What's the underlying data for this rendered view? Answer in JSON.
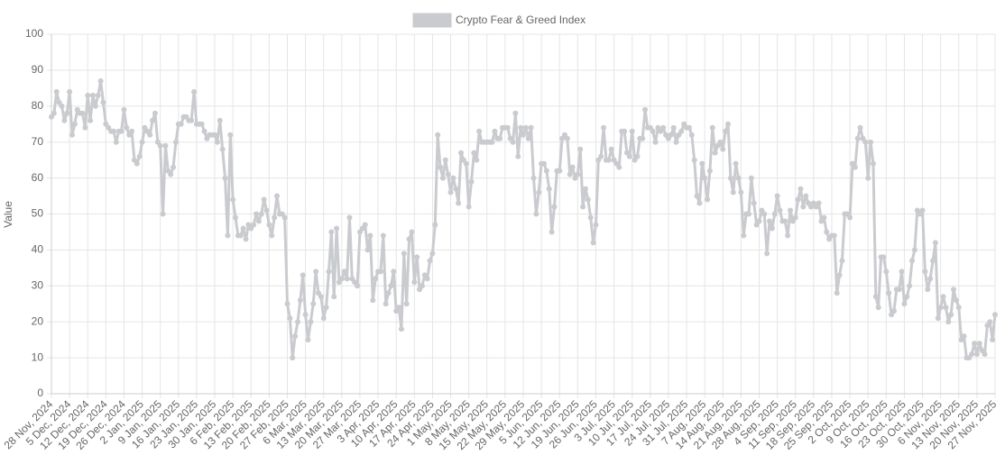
{
  "chart_data": {
    "type": "line",
    "ylabel": "Value",
    "legend": "top",
    "grid": true,
    "ylim": [
      0,
      100
    ],
    "yticks": [
      0,
      10,
      20,
      30,
      40,
      50,
      60,
      70,
      80,
      90,
      100
    ],
    "categories": [
      "28 Nov, 2024",
      null,
      null,
      null,
      null,
      null,
      null,
      "5 Dec, 2024",
      null,
      null,
      null,
      null,
      null,
      null,
      "12 Dec, 2024",
      null,
      null,
      null,
      null,
      null,
      null,
      "19 Dec, 2024",
      null,
      null,
      null,
      null,
      null,
      null,
      "26 Dec, 2024",
      null,
      null,
      null,
      null,
      null,
      null,
      "2 Jan, 2025",
      null,
      null,
      null,
      null,
      null,
      null,
      "9 Jan, 2025",
      null,
      null,
      null,
      null,
      null,
      null,
      "16 Jan, 2025",
      null,
      null,
      null,
      null,
      null,
      null,
      "23 Jan, 2025",
      null,
      null,
      null,
      null,
      null,
      null,
      "30 Jan, 2025",
      null,
      null,
      null,
      null,
      null,
      null,
      "6 Feb, 2025",
      null,
      null,
      null,
      null,
      null,
      null,
      "13 Feb, 2025",
      null,
      null,
      null,
      null,
      null,
      null,
      "20 Feb, 2025",
      null,
      null,
      null,
      null,
      null,
      null,
      "27 Feb, 2025",
      null,
      null,
      null,
      null,
      null,
      null,
      "6 Mar, 2025",
      null,
      null,
      null,
      null,
      null,
      null,
      "13 Mar, 2025",
      null,
      null,
      null,
      null,
      null,
      null,
      "20 Mar, 2025",
      null,
      null,
      null,
      null,
      null,
      null,
      "27 Mar, 2025",
      null,
      null,
      null,
      null,
      null,
      null,
      "3 Apr, 2025",
      null,
      null,
      null,
      null,
      null,
      null,
      "10 Apr, 2025",
      null,
      null,
      null,
      null,
      null,
      null,
      "17 Apr, 2025",
      null,
      null,
      null,
      null,
      null,
      null,
      "24 Apr, 2025",
      null,
      null,
      null,
      null,
      null,
      null,
      "1 May, 2025",
      null,
      null,
      null,
      null,
      null,
      null,
      "8 May, 2025",
      null,
      null,
      null,
      null,
      null,
      null,
      "15 May, 2025",
      null,
      null,
      null,
      null,
      null,
      null,
      "22 May, 2025",
      null,
      null,
      null,
      null,
      null,
      null,
      "29 May, 2025",
      null,
      null,
      null,
      null,
      null,
      null,
      "5 Jun, 2025",
      null,
      null,
      null,
      null,
      null,
      null,
      "12 Jun, 2025",
      null,
      null,
      null,
      null,
      null,
      null,
      "19 Jun, 2025",
      null,
      null,
      null,
      null,
      null,
      null,
      "26 Jun, 2025",
      null,
      null,
      null,
      null,
      null,
      null,
      "3 Jul, 2025",
      null,
      null,
      null,
      null,
      null,
      null,
      "10 Jul, 2025",
      null,
      null,
      null,
      null,
      null,
      null,
      "17 Jul, 2025",
      null,
      null,
      null,
      null,
      null,
      null,
      "24 Jul, 2025",
      null,
      null,
      null,
      null,
      null,
      null,
      "31 Jul, 2025",
      null,
      null,
      null,
      null,
      null,
      null,
      "7 Aug, 2025",
      null,
      null,
      null,
      null,
      null,
      null,
      "14 Aug, 2025",
      null,
      null,
      null,
      null,
      null,
      null,
      "21 Aug, 2025",
      null,
      null,
      null,
      null,
      null,
      null,
      "28 Aug, 2025",
      null,
      null,
      null,
      null,
      null,
      null,
      "4 Sep, 2025",
      null,
      null,
      null,
      null,
      null,
      null,
      "11 Sep, 2025",
      null,
      null,
      null,
      null,
      null,
      null,
      "18 Sep, 2025",
      null,
      null,
      null,
      null,
      null,
      null,
      "25 Sep, 2025",
      null,
      null,
      null,
      null,
      null,
      null,
      "2 Oct, 2025",
      null,
      null,
      null,
      null,
      null,
      null,
      "9 Oct, 2025",
      null,
      null,
      null,
      null,
      null,
      null,
      "16 Oct, 2025",
      null,
      null,
      null,
      null,
      null,
      null,
      "23 Oct, 2025",
      null,
      null,
      null,
      null,
      null,
      null,
      "30 Oct, 2025",
      null,
      null,
      null,
      null,
      null,
      null,
      "6 Nov, 2025",
      null,
      null,
      null,
      null,
      null,
      null,
      "13 Nov, 2025",
      null,
      null,
      null,
      null,
      null,
      null,
      "20 Nov, 2025",
      null,
      null,
      null,
      null,
      null,
      null,
      "27 Nov, 2025"
    ],
    "series": [
      {
        "name": "Crypto Fear & Greed Index",
        "color": "#c9cbcf",
        "values": [
          77,
          78,
          84,
          81,
          80,
          76,
          78,
          84,
          72,
          75,
          79,
          78,
          78,
          74,
          83,
          76,
          83,
          80,
          83,
          87,
          81,
          75,
          74,
          73,
          73,
          70,
          73,
          73,
          79,
          74,
          72,
          73,
          65,
          64,
          66,
          70,
          74,
          73,
          72,
          76,
          78,
          70,
          69,
          50,
          69,
          62,
          61,
          63,
          70,
          75,
          75,
          77,
          77,
          76,
          76,
          84,
          75,
          75,
          75,
          73,
          71,
          72,
          72,
          72,
          70,
          76,
          68,
          60,
          44,
          72,
          54,
          49,
          44,
          44,
          46,
          43,
          47,
          46,
          47,
          50,
          48,
          50,
          54,
          51,
          47,
          44,
          49,
          55,
          50,
          50,
          49,
          25,
          21,
          10,
          16,
          20,
          26,
          33,
          22,
          15,
          20,
          25,
          34,
          28,
          27,
          21,
          24,
          34,
          45,
          27,
          46,
          31,
          32,
          34,
          32,
          49,
          32,
          31,
          30,
          45,
          46,
          47,
          40,
          44,
          26,
          32,
          34,
          34,
          44,
          25,
          28,
          30,
          34,
          23,
          24,
          18,
          39,
          25,
          43,
          45,
          31,
          38,
          29,
          30,
          33,
          32,
          37,
          39,
          47,
          72,
          63,
          60,
          65,
          61,
          56,
          60,
          57,
          53,
          67,
          65,
          64,
          52,
          59,
          67,
          65,
          73,
          70,
          70,
          70,
          70,
          70,
          73,
          71,
          71,
          74,
          74,
          74,
          71,
          70,
          78,
          66,
          74,
          72,
          74,
          71,
          74,
          60,
          50,
          56,
          64,
          64,
          62,
          57,
          45,
          52,
          62,
          62,
          71,
          72,
          71,
          61,
          63,
          60,
          61,
          68,
          52,
          57,
          54,
          49,
          42,
          47,
          65,
          66,
          74,
          65,
          65,
          68,
          65,
          64,
          63,
          73,
          73,
          67,
          66,
          73,
          65,
          66,
          71,
          71,
          79,
          74,
          74,
          73,
          70,
          74,
          73,
          74,
          72,
          71,
          72,
          74,
          70,
          72,
          73,
          75,
          74,
          74,
          72,
          65,
          55,
          53,
          64,
          60,
          54,
          62,
          74,
          67,
          69,
          70,
          68,
          73,
          75,
          60,
          56,
          64,
          60,
          56,
          44,
          50,
          50,
          60,
          53,
          47,
          48,
          51,
          50,
          39,
          48,
          46,
          50,
          55,
          51,
          48,
          48,
          44,
          51,
          48,
          49,
          54,
          57,
          52,
          55,
          53,
          52,
          53,
          52,
          53,
          48,
          49,
          45,
          43,
          44,
          44,
          28,
          33,
          37,
          50,
          50,
          49,
          64,
          63,
          71,
          74,
          71,
          70,
          60,
          70,
          64,
          27,
          24,
          38,
          38,
          34,
          28,
          22,
          23,
          29,
          29,
          34,
          25,
          27,
          30,
          37,
          40,
          51,
          50,
          51,
          34,
          29,
          32,
          37,
          42,
          21,
          24,
          27,
          24,
          20,
          22,
          29,
          26,
          24,
          15,
          16,
          10,
          10,
          11,
          14,
          11,
          14,
          12,
          11,
          19,
          20,
          15,
          22
        ]
      }
    ]
  }
}
